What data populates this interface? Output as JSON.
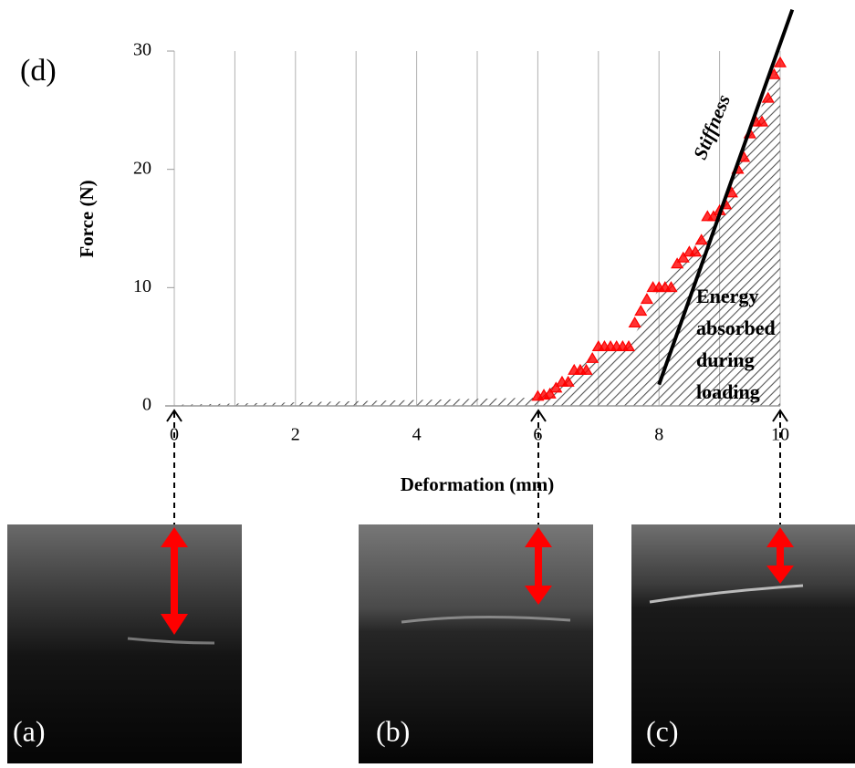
{
  "chart_data": {
    "type": "scatter",
    "panel_label": "(d)",
    "xlabel": "Deformation (mm)",
    "ylabel": "Force (N)",
    "xlim": [
      0,
      10
    ],
    "ylim": [
      0,
      30
    ],
    "xticks": [
      0,
      2,
      4,
      6,
      8,
      10
    ],
    "yticks": [
      0,
      10,
      20,
      30
    ],
    "xgrid_ticks": [
      0,
      1,
      2,
      3,
      4,
      5,
      6,
      7,
      8,
      9,
      10
    ],
    "grid": true,
    "series": [
      {
        "color": "#ff0000",
        "x": [
          6.0,
          6.1,
          6.2,
          6.3,
          6.4,
          6.5,
          6.6,
          6.7,
          6.8,
          6.9,
          7.0,
          7.1,
          7.2,
          7.3,
          7.4,
          7.5,
          7.6,
          7.7,
          7.8,
          7.9,
          8.0,
          8.1,
          8.2,
          8.3,
          8.4,
          8.5,
          8.6,
          8.7,
          8.8,
          8.9,
          9.0,
          9.1,
          9.2,
          9.3,
          9.4,
          9.5,
          9.6,
          9.7,
          9.8,
          9.9,
          10.0
        ],
        "values": [
          0.8,
          0.9,
          1,
          1.5,
          2,
          2,
          3,
          3,
          3,
          4,
          5,
          5,
          5,
          5,
          5,
          5,
          7,
          8,
          9,
          10,
          10,
          10,
          10,
          12,
          12.5,
          13,
          13,
          14,
          16,
          16,
          16.5,
          17,
          18,
          20,
          21,
          23,
          24,
          24,
          26,
          28,
          29
        ]
      }
    ],
    "shaded_area": {
      "color": "#555555",
      "x": [
        0,
        6,
        7,
        7.5,
        8,
        8.5,
        9,
        9.5,
        10
      ],
      "values": [
        0.1,
        0.7,
        4.5,
        5,
        10,
        13,
        16,
        23,
        29
      ]
    },
    "fit_line": {
      "label": "Stiffness",
      "color": "#000000",
      "x": [
        8,
        10.2
      ],
      "values": [
        1.8,
        33.5
      ]
    },
    "annotation_lines": [
      "Energy",
      "absorbed",
      "during",
      "loading"
    ],
    "images": [
      {
        "label": "(a)"
      },
      {
        "label": "(b)"
      },
      {
        "label": "(c)"
      }
    ]
  }
}
